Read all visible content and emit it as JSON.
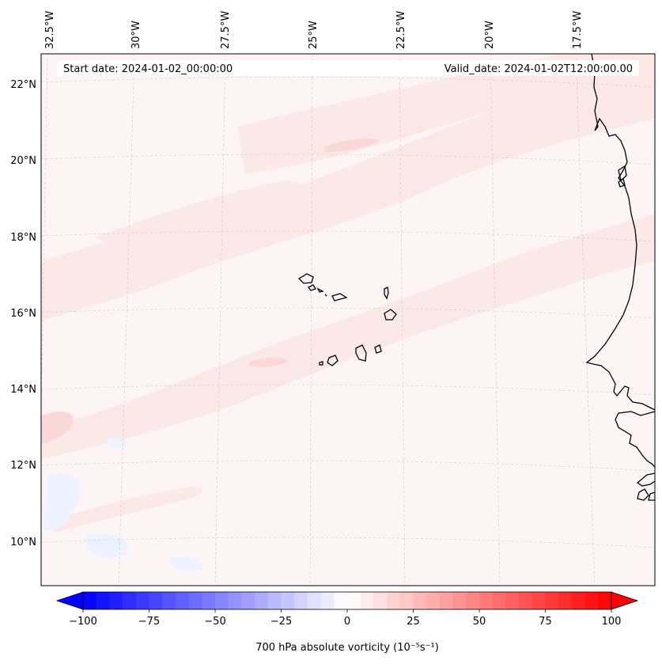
{
  "map": {
    "start_label": "Start date: 2024-01-02_00:00:00",
    "valid_label": "Valid_date: 2024-01-02T12:00:00.00",
    "longitudes": [
      "32.5°W",
      "30°W",
      "27.5°W",
      "25°W",
      "22.5°W",
      "20°W",
      "17.5°W"
    ],
    "latitudes": [
      "22°N",
      "20°N",
      "18°N",
      "16°N",
      "14°N",
      "12°N",
      "10°N"
    ],
    "field_colors": {
      "background": "#fdf5f5",
      "light_red": "#fde8e8",
      "medium_red": "#fbd8d8",
      "light_blue": "#eef2fe",
      "coast": "#000000"
    }
  },
  "colorbar": {
    "label": "700 hPa absolute vorticity (10⁻⁵s⁻¹)",
    "ticks": [
      "−100",
      "−75",
      "−50",
      "−25",
      "0",
      "25",
      "50",
      "75",
      "100"
    ],
    "min": -100,
    "max": 100,
    "step": 5,
    "colors": {
      "negative": "#0000ff",
      "zero": "#ffffff",
      "positive": "#ff0000"
    }
  }
}
